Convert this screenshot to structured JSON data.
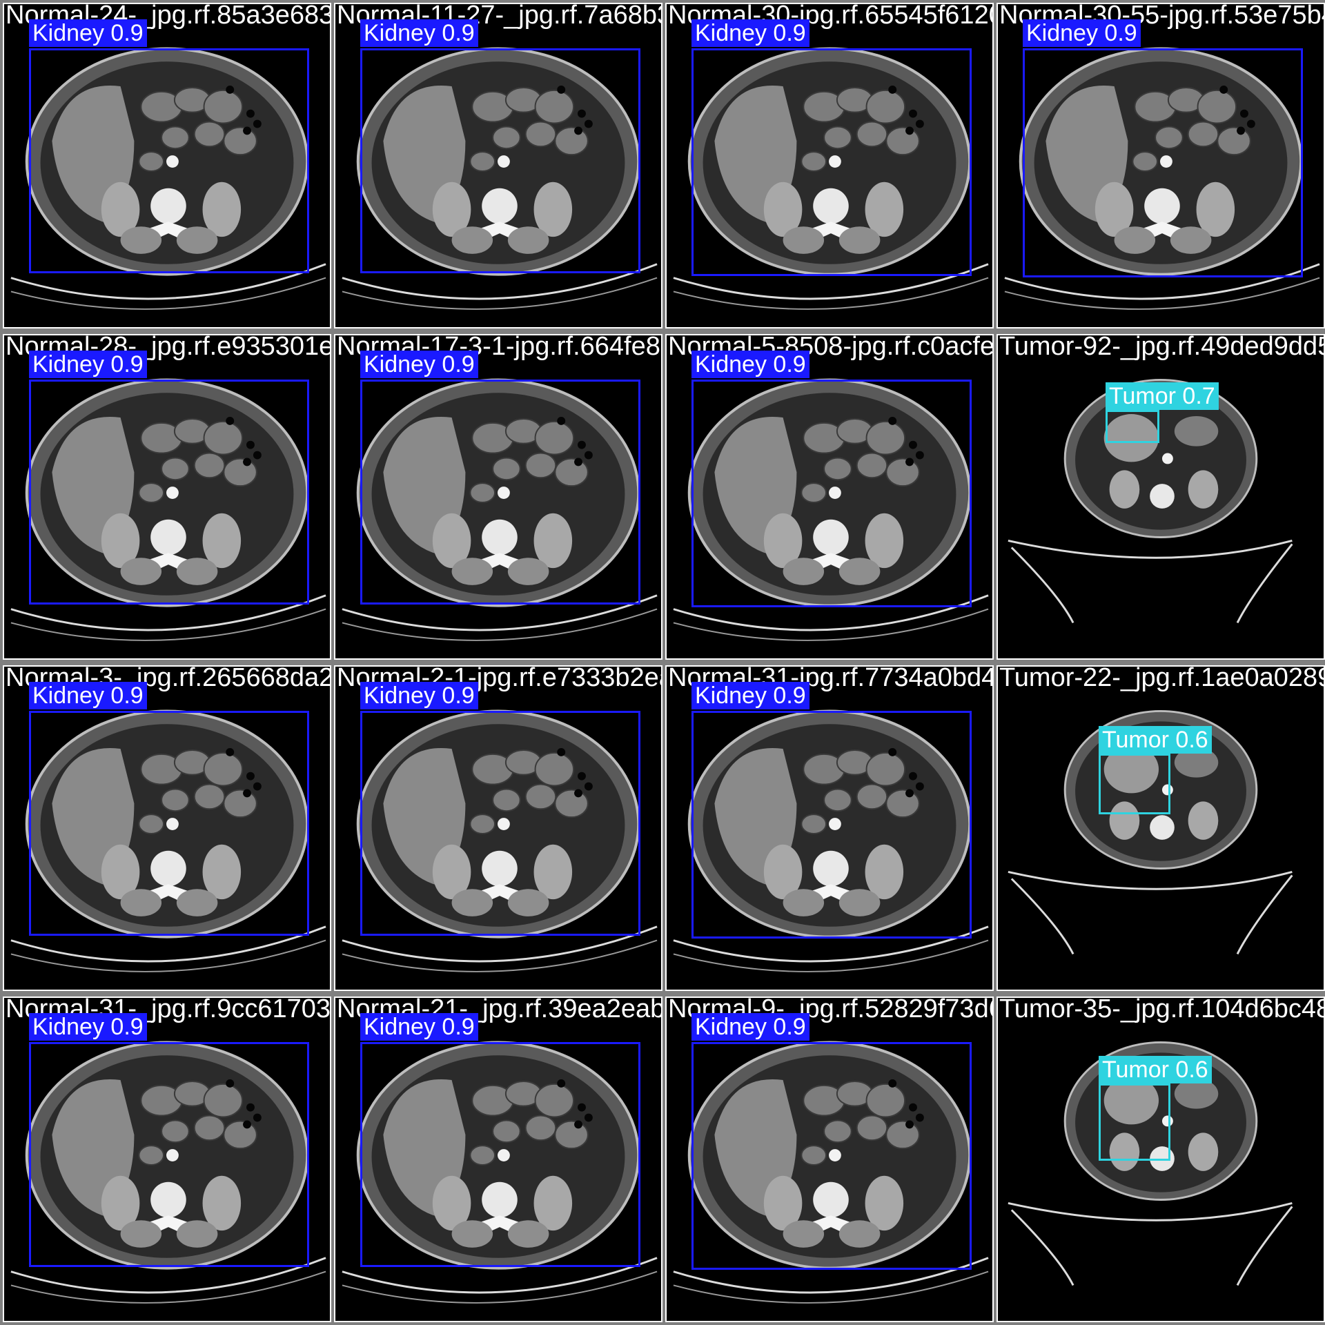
{
  "colors": {
    "background": "#808080",
    "tile_background": "#000000",
    "kidney": "#1a1aff",
    "tumor": "#2fd3e0"
  },
  "tiles": [
    {
      "filename": "Normal-24-_jpg.rf.85a3e683e6f9c11127e0b4",
      "kind": "normal",
      "detections": [
        {
          "label": "Kidney 0.9",
          "class": "kidney"
        }
      ]
    },
    {
      "filename": "Normal-11-27-_jpg.rf.7a68b373c",
      "kind": "normal",
      "detections": [
        {
          "label": "Kidney 0.9",
          "class": "kidney"
        }
      ]
    },
    {
      "filename": "Normal-30-jpg.rf.65545f61208",
      "kind": "normal",
      "detections": [
        {
          "label": "Kidney 0.9",
          "class": "kidney"
        }
      ]
    },
    {
      "filename": "Normal-30-55-jpg.rf.53e75b45a",
      "kind": "normal",
      "detections": [
        {
          "label": "Kidney 0.9",
          "class": "kidney"
        }
      ]
    },
    {
      "filename": "Normal-28-_jpg.rf.e935301e1",
      "kind": "normal",
      "detections": [
        {
          "label": "Kidney 0.9",
          "class": "kidney"
        }
      ]
    },
    {
      "filename": "Normal-17-3-1-jpg.rf.664fe8cc00f",
      "kind": "normal",
      "detections": [
        {
          "label": "Kidney 0.9",
          "class": "kidney"
        }
      ]
    },
    {
      "filename": "Normal-5-8508-jpg.rf.c0acfec877",
      "kind": "normal",
      "detections": [
        {
          "label": "Kidney 0.9",
          "class": "kidney"
        }
      ]
    },
    {
      "filename": "Tumor-92-_jpg.rf.49ded9dd5",
      "kind": "tumor",
      "detections": [
        {
          "label": "Tumor 0.7",
          "class": "tumor"
        }
      ]
    },
    {
      "filename": "Normal-3-_jpg.rf.265668da285",
      "kind": "normal",
      "detections": [
        {
          "label": "Kidney 0.9",
          "class": "kidney"
        }
      ]
    },
    {
      "filename": "Normal-2-1-jpg.rf.e7333b2ea8",
      "kind": "normal",
      "detections": [
        {
          "label": "Kidney 0.9",
          "class": "kidney"
        }
      ]
    },
    {
      "filename": "Normal-31-jpg.rf.7734a0bd4a",
      "kind": "normal",
      "detections": [
        {
          "label": "Kidney 0.9",
          "class": "kidney"
        }
      ]
    },
    {
      "filename": "Tumor-22-_jpg.rf.1ae0a0289",
      "kind": "tumor",
      "detections": [
        {
          "label": "Tumor 0.6",
          "class": "tumor"
        }
      ]
    },
    {
      "filename": "Normal-31-_jpg.rf.9cc617031",
      "kind": "normal",
      "detections": [
        {
          "label": "Kidney 0.9",
          "class": "kidney"
        }
      ]
    },
    {
      "filename": "Normal-21-_jpg.rf.39ea2eabb",
      "kind": "normal",
      "detections": [
        {
          "label": "Kidney 0.9",
          "class": "kidney"
        }
      ]
    },
    {
      "filename": "Normal-9-_jpg.rf.52829f73d6",
      "kind": "normal",
      "detections": [
        {
          "label": "Kidney 0.9",
          "class": "kidney"
        }
      ]
    },
    {
      "filename": "Tumor-35-_jpg.rf.104d6bc48",
      "kind": "tumor",
      "detections": [
        {
          "label": "Tumor 0.6",
          "class": "tumor"
        }
      ]
    }
  ]
}
